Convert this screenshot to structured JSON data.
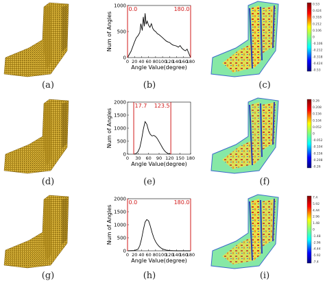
{
  "figure": {
    "captions": [
      "(a)",
      "(b)",
      "(c)",
      "(d)",
      "(e)",
      "(f)",
      "(g)",
      "(h)",
      "(i)"
    ],
    "rows": [
      {
        "histogram": {
          "y_ticks": [
            "1000",
            "500",
            "0"
          ],
          "x_ticks": [
            "0",
            "20",
            "40",
            "60",
            "80",
            "100",
            "120",
            "140",
            "160",
            "180"
          ],
          "ylabel": "Num of Angles",
          "xlabel": "Angle Value(degree)",
          "lower_label": "0.0",
          "upper_label": "180.0"
        },
        "colorbar": [
          "0.53",
          "0.424",
          "0.318",
          "0.212",
          "0.106",
          "0",
          "-0.106",
          "-0.212",
          "-0.318",
          "-0.424",
          "-0.53"
        ]
      },
      {
        "histogram": {
          "y_ticks": [
            "2000",
            "1500",
            "1000",
            "500",
            "0"
          ],
          "x_ticks": [
            "0",
            "30",
            "60",
            "90",
            "120",
            "150",
            "180"
          ],
          "ylabel": "Num of Angles",
          "xlabel": "Angle Value(degree)",
          "lower_label": "17.7",
          "upper_label": "123.5"
        },
        "colorbar": [
          "0.26",
          "0.208",
          "0.156",
          "0.104",
          "0.052",
          "0",
          "-0.052",
          "-0.104",
          "-0.156",
          "-0.208",
          "-0.26"
        ]
      },
      {
        "histogram": {
          "y_ticks": [
            "2000",
            "1500",
            "1000",
            "500",
            "0"
          ],
          "x_ticks": [
            "0",
            "20",
            "40",
            "60",
            "80",
            "100",
            "120",
            "140",
            "160",
            "180"
          ],
          "ylabel": "Num of Angles",
          "xlabel": "Angle Value(degree)",
          "lower_label": "0.0",
          "upper_label": "180.0"
        },
        "colorbar": [
          "7.4",
          "5.92",
          "4.44",
          "2.96",
          "1.48",
          "0",
          "-1.48",
          "-2.96",
          "-4.44",
          "-5.92",
          "-7.4"
        ]
      }
    ]
  },
  "chart_data": [
    {
      "type": "line",
      "panel": "(b)",
      "xlabel": "Angle Value(degree)",
      "ylabel": "Num of Angles",
      "xlim": [
        0,
        180
      ],
      "ylim": [
        0,
        1000
      ],
      "markers": [
        0.0,
        180.0
      ],
      "x": [
        0,
        10,
        20,
        25,
        30,
        35,
        38,
        42,
        45,
        48,
        50,
        53,
        56,
        60,
        64,
        68,
        72,
        76,
        80,
        85,
        90,
        95,
        100,
        105,
        110,
        115,
        120,
        125,
        130,
        135,
        140,
        145,
        150,
        155,
        160,
        165,
        170,
        175,
        180
      ],
      "y": [
        0,
        120,
        300,
        380,
        420,
        480,
        650,
        520,
        780,
        600,
        850,
        640,
        700,
        620,
        580,
        650,
        560,
        520,
        500,
        460,
        440,
        410,
        380,
        350,
        320,
        300,
        290,
        260,
        240,
        230,
        220,
        200,
        230,
        180,
        150,
        130,
        160,
        80,
        0
      ]
    },
    {
      "type": "line",
      "panel": "(e)",
      "xlabel": "Angle Value(degree)",
      "ylabel": "Num of Angles",
      "xlim": [
        0,
        180
      ],
      "ylim": [
        0,
        2000
      ],
      "markers": [
        17.7,
        123.5
      ],
      "x": [
        18,
        25,
        30,
        35,
        40,
        45,
        50,
        55,
        60,
        65,
        70,
        75,
        80,
        85,
        90,
        95,
        100,
        105,
        110,
        115,
        120,
        123
      ],
      "y": [
        0,
        30,
        100,
        250,
        550,
        950,
        1250,
        1150,
        900,
        760,
        700,
        720,
        680,
        600,
        480,
        360,
        240,
        140,
        70,
        30,
        10,
        0
      ]
    },
    {
      "type": "line",
      "panel": "(h)",
      "xlabel": "Angle Value(degree)",
      "ylabel": "Num of Angles",
      "xlim": [
        0,
        180
      ],
      "ylim": [
        0,
        2000
      ],
      "markers": [
        0.0,
        180.0
      ],
      "x": [
        0,
        20,
        30,
        35,
        40,
        45,
        50,
        55,
        60,
        65,
        70,
        75,
        80,
        85,
        90,
        95,
        100,
        110,
        120,
        140,
        160,
        180
      ],
      "y": [
        0,
        10,
        60,
        200,
        450,
        800,
        1100,
        1200,
        1150,
        950,
        700,
        500,
        350,
        250,
        170,
        110,
        70,
        30,
        10,
        0,
        0,
        0
      ]
    }
  ]
}
